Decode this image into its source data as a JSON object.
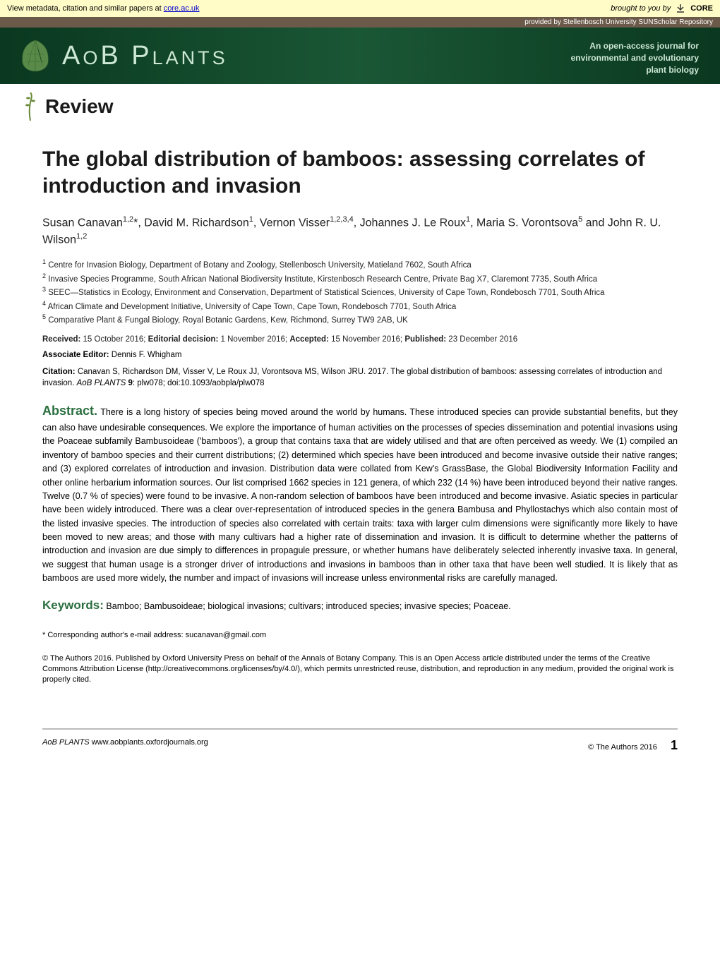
{
  "topbar": {
    "left_pre": "View metadata, citation and similar papers at ",
    "left_link": "core.ac.uk",
    "right_pre": "brought to you by ",
    "right_brand": "CORE"
  },
  "provbar": {
    "text": "provided by Stellenbosch University SUNScholar Repository"
  },
  "header": {
    "title": "AoB Plants",
    "tagline_l1": "An open-access journal for",
    "tagline_l2": "environmental and evolutionary",
    "tagline_l3": "plant biology"
  },
  "review": {
    "label": "Review"
  },
  "paper": {
    "title": "The global distribution of bamboos: assessing correlates of introduction and invasion",
    "authors_html": "Susan Canavan<sup>1,2</sup>*, David M. Richardson<sup>1</sup>, Vernon Visser<sup>1,2,3,4</sup>, Johannes J. Le Roux<sup>1</sup>, Maria S. Vorontsova<sup>5</sup> and John R. U. Wilson<sup>1,2</sup>",
    "affils_html": "<sup>1</sup> Centre for Invasion Biology, Department of Botany and Zoology, Stellenbosch University, Matieland 7602, South Africa<br><sup>2</sup> Invasive Species Programme, South African National Biodiversity Institute, Kirstenbosch Research Centre, Private Bag X7, Claremont 7735, South Africa<br><sup>3</sup> SEEC—Statistics in Ecology, Environment and Conservation, Department of Statistical Sciences, University of Cape Town, Rondebosch 7701, South Africa<br><sup>4</sup> African Climate and Development Initiative, University of Cape Town, Cape Town, Rondebosch 7701, South Africa<br><sup>5</sup> Comparative Plant & Fungal Biology, Royal Botanic Gardens, Kew, Richmond, Surrey TW9 2AB, UK",
    "dates_html": "<b>Received:</b> 15 October 2016; <b>Editorial decision:</b> 1 November 2016; <b>Accepted:</b> 15 November 2016; <b>Published:</b> 23 December 2016",
    "assoc_html": "<b>Associate Editor:</b> Dennis F. Whigham",
    "citation_html": "<b>Citation:</b> Canavan S, Richardson DM, Visser V, Le Roux JJ, Vorontsova MS, Wilson JRU. 2017. The global distribution of bamboos: assessing correlates of introduction and invasion. <i>AoB PLANTS</i> <b>9</b>: plw078; doi:10.1093/aobpla/plw078",
    "abstract": "There is a long history of species being moved around the world by humans. These introduced species can provide substantial benefits, but they can also have undesirable consequences. We explore the importance of human activities on the processes of species dissemination and potential invasions using the Poaceae subfamily Bambusoideae ('bamboos'), a group that contains taxa that are widely utilised and that are often perceived as weedy. We (1) compiled an inventory of bamboo species and their current distributions; (2) determined which species have been introduced and become invasive outside their native ranges; and (3) explored correlates of introduction and invasion. Distribution data were collated from Kew's GrassBase, the Global Biodiversity Information Facility and other online herbarium information sources. Our list comprised 1662 species in 121 genera, of which 232 (14 %) have been introduced beyond their native ranges. Twelve (0.7 % of species) were found to be invasive. A non-random selection of bamboos have been introduced and become invasive. Asiatic species in particular have been widely introduced. There was a clear over-representation of introduced species in the genera Bambusa and Phyllostachys which also contain most of the listed invasive species. The introduction of species also correlated with certain traits: taxa with larger culm dimensions were significantly more likely to have been moved to new areas; and those with many cultivars had a higher rate of dissemination and invasion. It is difficult to determine whether the patterns of introduction and invasion are due simply to differences in propagule pressure, or whether humans have deliberately selected inherently invasive taxa. In general, we suggest that human usage is a stronger driver of introductions and invasions in bamboos than in other taxa that have been well studied. It is likely that as bamboos are used more widely, the number and impact of invasions will increase unless environmental risks are carefully managed.",
    "keywords": "Bamboo; Bambusoideae; biological invasions; cultivars; introduced species; invasive species; Poaceae.",
    "corresp": "* Corresponding author's e-mail address: sucanavan@gmail.com",
    "license": "© The Authors 2016. Published by Oxford University Press on behalf of the Annals of Botany Company.\nThis is an Open Access article distributed under the terms of the Creative Commons Attribution License (http://creativecommons.org/licenses/by/4.0/), which permits unrestricted reuse, distribution, and reproduction in any medium, provided the original work is properly cited."
  },
  "labels": {
    "abstract": "Abstract.",
    "keywords": "Keywords:"
  },
  "footer": {
    "left_html": "<i>AoB PLANTS</i> www.aobplants.oxfordjournals.org",
    "right": "© The Authors 2016",
    "page": "1"
  },
  "colors": {
    "header_green_dark": "#0a3820",
    "header_green_mid": "#1a5735",
    "accent_green": "#2a6e3f",
    "topbar_bg": "#fffcc8",
    "provbar_bg": "#6b5a4a"
  }
}
